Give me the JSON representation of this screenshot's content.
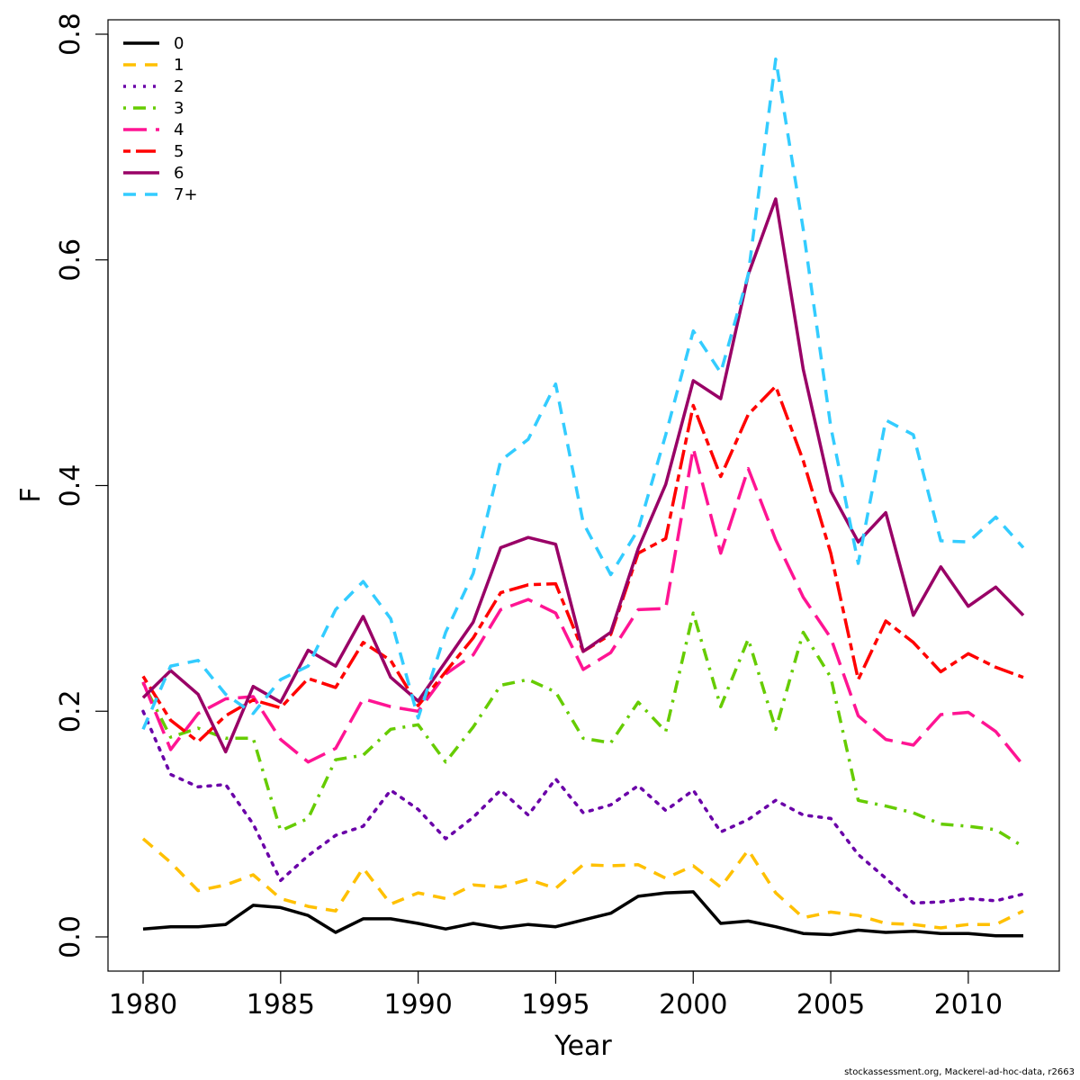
{
  "chart_data": {
    "type": "line",
    "title": "",
    "xlabel": "Year",
    "ylabel": "F",
    "xlim": [
      1980,
      2012
    ],
    "ylim": [
      0,
      0.8
    ],
    "x_ticks": [
      1980,
      1985,
      1990,
      1995,
      2000,
      2005,
      2010
    ],
    "y_ticks": [
      "0.0",
      "0.2",
      "0.4",
      "0.6",
      "0.8"
    ],
    "legend_position": "top-left",
    "grid": false,
    "x": [
      1980,
      1981,
      1982,
      1983,
      1984,
      1985,
      1986,
      1987,
      1988,
      1989,
      1990,
      1991,
      1992,
      1993,
      1994,
      1995,
      1996,
      1997,
      1998,
      1999,
      2000,
      2001,
      2002,
      2003,
      2004,
      2005,
      2006,
      2007,
      2008,
      2009,
      2010,
      2011,
      2012
    ],
    "series": [
      {
        "name": "0",
        "color": "#000000",
        "dash": "solid",
        "values": [
          0.007,
          0.009,
          0.009,
          0.011,
          0.028,
          0.026,
          0.019,
          0.004,
          0.016,
          0.016,
          0.012,
          0.007,
          0.012,
          0.008,
          0.011,
          0.009,
          0.015,
          0.021,
          0.036,
          0.039,
          0.04,
          0.012,
          0.014,
          0.009,
          0.003,
          0.002,
          0.006,
          0.004,
          0.005,
          0.003,
          0.003,
          0.001,
          0.001
        ]
      },
      {
        "name": "1",
        "color": "#FFC000",
        "dash": "dashed",
        "values": [
          0.087,
          0.066,
          0.041,
          0.046,
          0.055,
          0.034,
          0.027,
          0.023,
          0.061,
          0.029,
          0.039,
          0.034,
          0.046,
          0.044,
          0.051,
          0.043,
          0.064,
          0.063,
          0.064,
          0.052,
          0.063,
          0.044,
          0.077,
          0.039,
          0.017,
          0.022,
          0.019,
          0.012,
          0.011,
          0.008,
          0.011,
          0.011,
          0.023
        ]
      },
      {
        "name": "2",
        "color": "#6A00A8",
        "dash": "dotted",
        "values": [
          0.2,
          0.144,
          0.133,
          0.135,
          0.1,
          0.05,
          0.072,
          0.09,
          0.098,
          0.13,
          0.113,
          0.087,
          0.106,
          0.13,
          0.108,
          0.14,
          0.11,
          0.117,
          0.134,
          0.112,
          0.13,
          0.093,
          0.104,
          0.121,
          0.108,
          0.105,
          0.073,
          0.052,
          0.03,
          0.031,
          0.034,
          0.032,
          0.038
        ]
      },
      {
        "name": "3",
        "color": "#66CC00",
        "dash": "dotdash",
        "values": [
          0.225,
          0.177,
          0.185,
          0.176,
          0.176,
          0.094,
          0.105,
          0.157,
          0.161,
          0.184,
          0.188,
          0.155,
          0.186,
          0.223,
          0.228,
          0.217,
          0.176,
          0.172,
          0.208,
          0.182,
          0.287,
          0.204,
          0.264,
          0.184,
          0.27,
          0.23,
          0.121,
          0.116,
          0.11,
          0.1,
          0.098,
          0.095,
          0.08
        ]
      },
      {
        "name": "4",
        "color": "#FF1493",
        "dash": "longdash",
        "values": [
          0.226,
          0.166,
          0.198,
          0.211,
          0.213,
          0.175,
          0.155,
          0.167,
          0.211,
          0.204,
          0.2,
          0.233,
          0.25,
          0.29,
          0.299,
          0.287,
          0.237,
          0.252,
          0.29,
          0.291,
          0.433,
          0.34,
          0.415,
          0.352,
          0.301,
          0.265,
          0.196,
          0.175,
          0.17,
          0.197,
          0.199,
          0.182,
          0.152
        ]
      },
      {
        "name": "5",
        "color": "#FF0000",
        "dash": "twodash",
        "values": [
          0.231,
          0.192,
          0.173,
          0.196,
          0.21,
          0.203,
          0.229,
          0.221,
          0.261,
          0.245,
          0.205,
          0.235,
          0.265,
          0.305,
          0.312,
          0.313,
          0.253,
          0.268,
          0.34,
          0.353,
          0.471,
          0.408,
          0.463,
          0.488,
          0.422,
          0.34,
          0.228,
          0.28,
          0.261,
          0.235,
          0.251,
          0.239,
          0.23
        ]
      },
      {
        "name": "6",
        "color": "#990066",
        "dash": "solid",
        "values": [
          0.212,
          0.236,
          0.215,
          0.164,
          0.222,
          0.208,
          0.254,
          0.24,
          0.284,
          0.23,
          0.209,
          0.244,
          0.279,
          0.345,
          0.354,
          0.348,
          0.253,
          0.27,
          0.344,
          0.401,
          0.493,
          0.477,
          0.587,
          0.654,
          0.503,
          0.395,
          0.35,
          0.376,
          0.285,
          0.328,
          0.293,
          0.31,
          0.285
        ]
      },
      {
        "name": "7+",
        "color": "#33CCFF",
        "dash": "dashed",
        "values": [
          0.184,
          0.24,
          0.245,
          0.215,
          0.198,
          0.228,
          0.24,
          0.29,
          0.315,
          0.282,
          0.194,
          0.27,
          0.322,
          0.422,
          0.441,
          0.49,
          0.367,
          0.321,
          0.361,
          0.445,
          0.537,
          0.5,
          0.587,
          0.778,
          0.627,
          0.452,
          0.331,
          0.458,
          0.445,
          0.351,
          0.35,
          0.372,
          0.345
        ]
      }
    ]
  },
  "footer": {
    "credit": "stockassessment.org, Mackerel-ad-hoc-data, r2663"
  }
}
